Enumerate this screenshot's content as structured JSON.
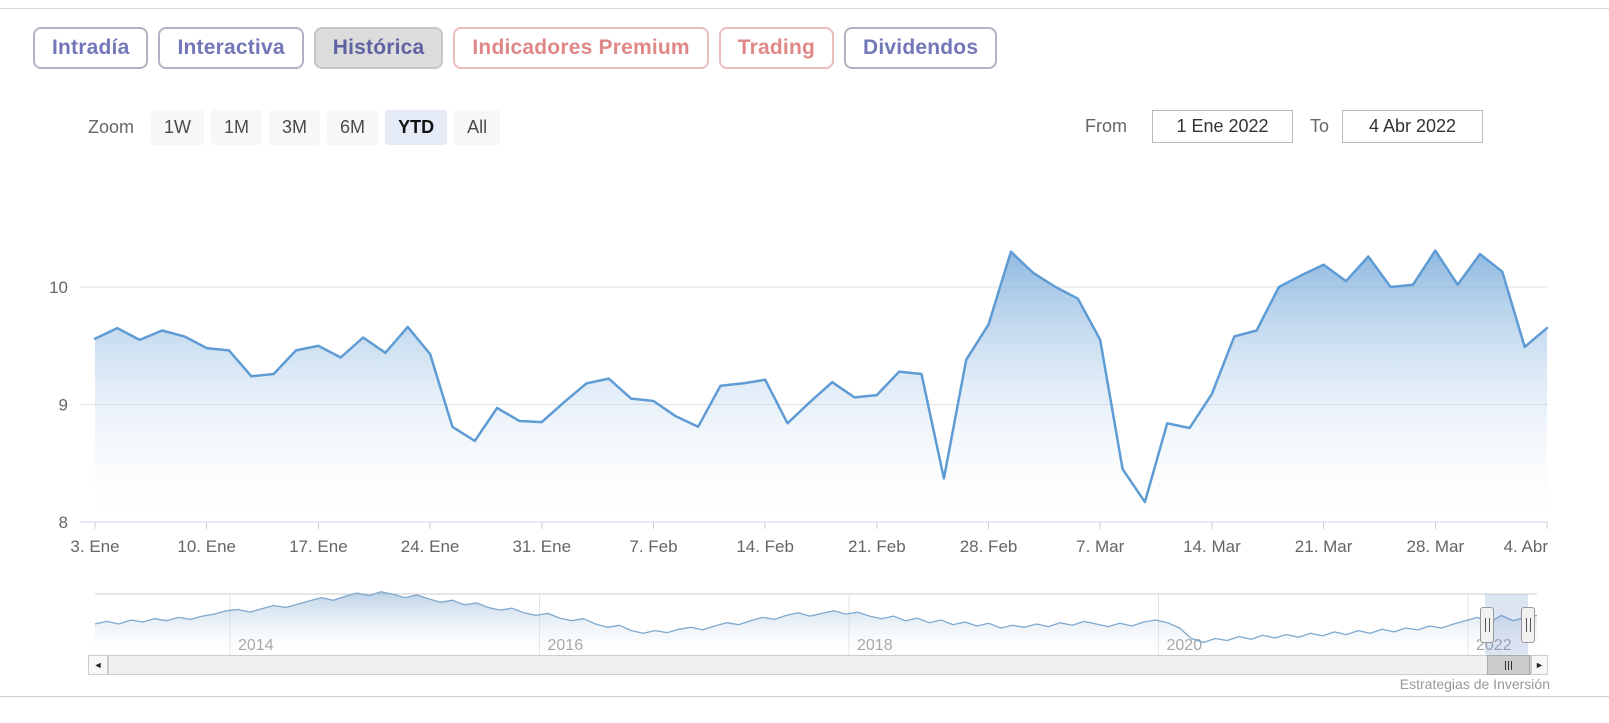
{
  "tabs": [
    {
      "label": "Intradía",
      "style": "purple",
      "active": false
    },
    {
      "label": "Interactiva",
      "style": "purple",
      "active": false
    },
    {
      "label": "Histórica",
      "style": "purple",
      "active": true
    },
    {
      "label": "Indicadores Premium",
      "style": "red",
      "active": false
    },
    {
      "label": "Trading",
      "style": "red",
      "active": false
    },
    {
      "label": "Dividendos",
      "style": "purple",
      "active": false
    }
  ],
  "range_selector": {
    "zoom_label": "Zoom",
    "buttons": [
      "1W",
      "1M",
      "3M",
      "6M",
      "YTD",
      "All"
    ],
    "active": "YTD",
    "from_label": "From",
    "from_value": "1 Ene 2022",
    "to_label": "To",
    "to_value": "4 Abr 2022"
  },
  "chart_data": {
    "type": "area",
    "title": "",
    "xlabel": "",
    "ylabel": "",
    "ylim": [
      8,
      10.6
    ],
    "y_ticks": [
      8,
      9,
      10
    ],
    "x_tick_labels": [
      "3. Ene",
      "10. Ene",
      "17. Ene",
      "24. Ene",
      "31. Ene",
      "7. Feb",
      "14. Feb",
      "21. Feb",
      "28. Feb",
      "7. Mar",
      "14. Mar",
      "21. Mar",
      "28. Mar",
      "4. Abr"
    ],
    "dates": [
      "3 Ene",
      "4 Ene",
      "5 Ene",
      "6 Ene",
      "7 Ene",
      "10 Ene",
      "11 Ene",
      "12 Ene",
      "13 Ene",
      "14 Ene",
      "17 Ene",
      "18 Ene",
      "19 Ene",
      "20 Ene",
      "21 Ene",
      "24 Ene",
      "25 Ene",
      "26 Ene",
      "27 Ene",
      "28 Ene",
      "31 Ene",
      "1 Feb",
      "2 Feb",
      "3 Feb",
      "4 Feb",
      "7 Feb",
      "8 Feb",
      "9 Feb",
      "10 Feb",
      "11 Feb",
      "14 Feb",
      "15 Feb",
      "16 Feb",
      "17 Feb",
      "18 Feb",
      "21 Feb",
      "22 Feb",
      "23 Feb",
      "24 Feb",
      "25 Feb",
      "28 Feb",
      "1 Mar",
      "2 Mar",
      "3 Mar",
      "4 Mar",
      "7 Mar",
      "8 Mar",
      "9 Mar",
      "10 Mar",
      "11 Mar",
      "14 Mar",
      "15 Mar",
      "16 Mar",
      "17 Mar",
      "18 Mar",
      "21 Mar",
      "22 Mar",
      "23 Mar",
      "24 Mar",
      "25 Mar",
      "28 Mar",
      "29 Mar",
      "30 Mar",
      "31 Mar",
      "1 Abr",
      "4 Abr"
    ],
    "values": [
      9.56,
      9.65,
      9.55,
      9.63,
      9.58,
      9.48,
      9.46,
      9.24,
      9.26,
      9.46,
      9.5,
      9.4,
      9.57,
      9.44,
      9.66,
      9.43,
      8.81,
      8.69,
      8.97,
      8.86,
      8.85,
      9.02,
      9.18,
      9.22,
      9.05,
      9.03,
      8.9,
      8.81,
      9.16,
      9.18,
      9.21,
      8.84,
      9.02,
      9.19,
      9.06,
      9.08,
      9.28,
      9.26,
      8.37,
      9.38,
      9.68,
      10.3,
      10.12,
      10.0,
      9.9,
      9.55,
      8.45,
      8.17,
      8.84,
      8.8,
      9.09,
      9.58,
      9.63,
      10.0,
      10.1,
      10.19,
      10.05,
      10.26,
      10.0,
      10.02,
      10.31,
      10.02,
      10.28,
      10.13,
      9.49,
      9.65
    ],
    "line_color": "#5f9bd4",
    "fill_top_color": "#5f9bd4",
    "grid_color": "#e2e2e2",
    "axis_line_color": "#ccd6eb",
    "label_color": "#666666",
    "legend": "off",
    "grid": "on"
  },
  "navigator": {
    "year_labels": [
      "2014",
      "2016",
      "2018",
      "2020",
      "2022"
    ],
    "values": [
      0.5,
      0.54,
      0.5,
      0.56,
      0.53,
      0.58,
      0.55,
      0.6,
      0.57,
      0.62,
      0.65,
      0.7,
      0.72,
      0.68,
      0.73,
      0.78,
      0.75,
      0.8,
      0.85,
      0.9,
      0.86,
      0.92,
      0.97,
      0.93,
      0.99,
      0.95,
      0.9,
      0.94,
      0.88,
      0.83,
      0.86,
      0.79,
      0.82,
      0.75,
      0.71,
      0.74,
      0.67,
      0.63,
      0.66,
      0.59,
      0.55,
      0.58,
      0.5,
      0.45,
      0.48,
      0.4,
      0.36,
      0.4,
      0.37,
      0.42,
      0.45,
      0.41,
      0.47,
      0.52,
      0.49,
      0.55,
      0.6,
      0.57,
      0.63,
      0.67,
      0.62,
      0.66,
      0.7,
      0.65,
      0.68,
      0.62,
      0.58,
      0.62,
      0.55,
      0.59,
      0.52,
      0.56,
      0.49,
      0.53,
      0.47,
      0.51,
      0.44,
      0.48,
      0.45,
      0.5,
      0.46,
      0.52,
      0.48,
      0.54,
      0.5,
      0.46,
      0.51,
      0.47,
      0.53,
      0.56,
      0.52,
      0.44,
      0.28,
      0.22,
      0.28,
      0.25,
      0.31,
      0.27,
      0.33,
      0.29,
      0.34,
      0.3,
      0.36,
      0.32,
      0.38,
      0.34,
      0.4,
      0.36,
      0.42,
      0.38,
      0.44,
      0.41,
      0.47,
      0.44,
      0.5,
      0.55,
      0.6,
      0.52,
      0.63,
      0.55,
      0.6,
      0.63
    ],
    "line_color": "#7fa9cf",
    "mask_color": "rgba(102,133,194,0.22)",
    "label_color": "#9a9a9a"
  },
  "icons": {
    "scroll_left": "◄",
    "scroll_right": "►"
  },
  "credits": {
    "text": "Estrategias de Inversión"
  }
}
